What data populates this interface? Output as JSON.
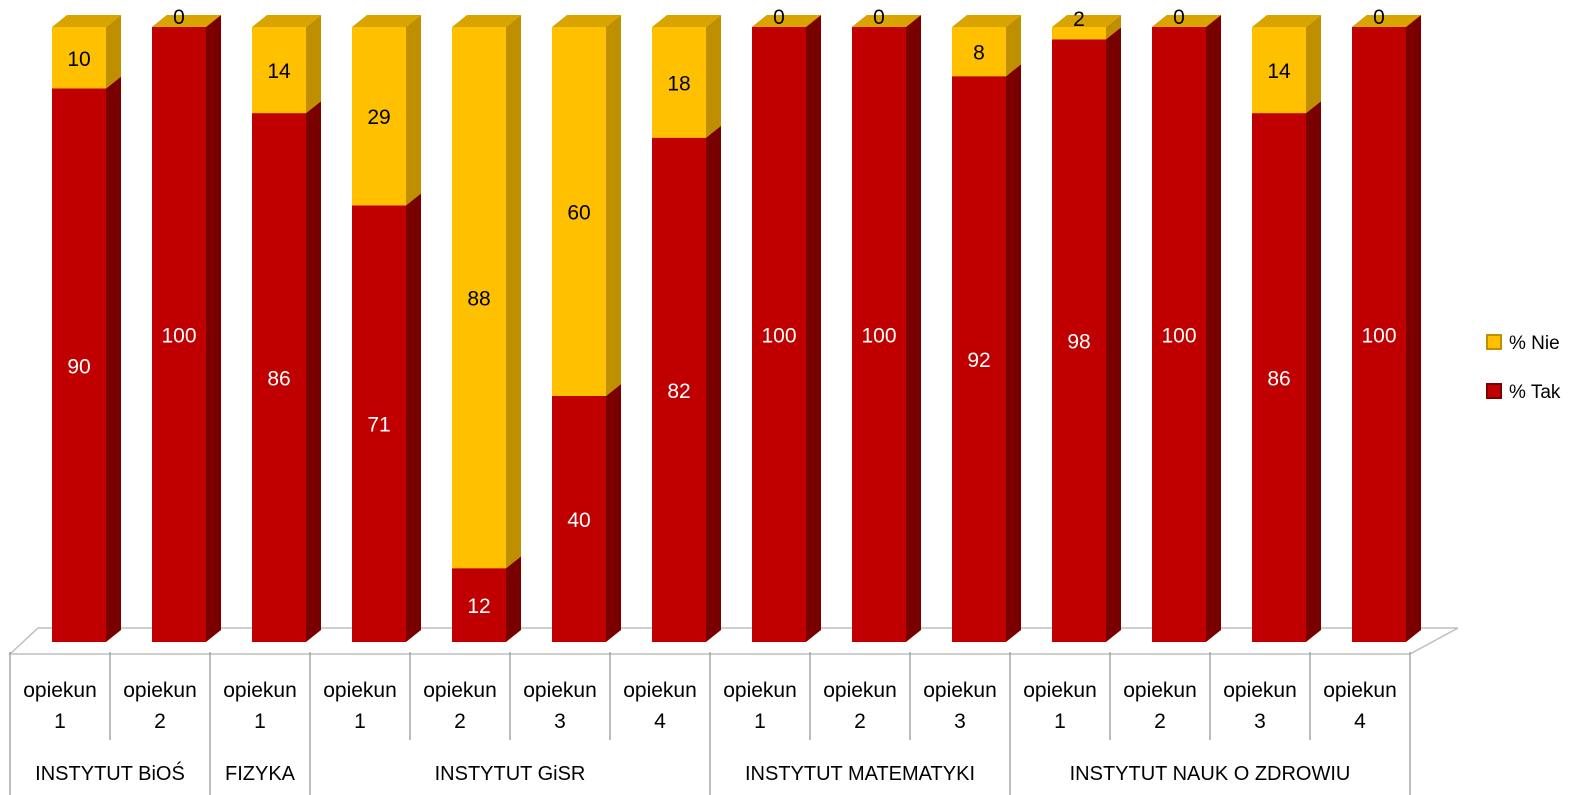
{
  "chart_data": {
    "type": "bar",
    "stacked": true,
    "three_d": true,
    "ylim": [
      0,
      100
    ],
    "grid": false,
    "legend_position": "right",
    "category_prefix": "opiekun",
    "categories": [
      "opiekun 1",
      "opiekun 2",
      "opiekun 1",
      "opiekun 1",
      "opiekun 2",
      "opiekun 3",
      "opiekun 4",
      "opiekun 1",
      "opiekun 2",
      "opiekun 3",
      "opiekun 1",
      "opiekun 2",
      "opiekun 3",
      "opiekun 4"
    ],
    "category_numbers": [
      "1",
      "2",
      "1",
      "1",
      "2",
      "3",
      "4",
      "1",
      "2",
      "3",
      "1",
      "2",
      "3",
      "4"
    ],
    "groups": [
      {
        "label": "INSTYTUT  BiOŚ",
        "count": 2
      },
      {
        "label": "FIZYKA",
        "count": 1
      },
      {
        "label": "INSTYTUT  GiSR",
        "count": 4
      },
      {
        "label": "INSTYTUT  MATEMATYKI",
        "count": 3
      },
      {
        "label": "INSTYTUT  NAUK O ZDROWIU",
        "count": 4
      }
    ],
    "series": [
      {
        "name": "% Tak",
        "color": "#c00000",
        "side_color": "#7a0000",
        "top_color": "#c00000",
        "values": [
          90,
          100,
          86,
          71,
          12,
          40,
          82,
          100,
          100,
          92,
          98,
          100,
          86,
          100
        ]
      },
      {
        "name": "% Nie",
        "color": "#ffc000",
        "side_color": "#bf8f00",
        "top_color": "#d9a400",
        "values": [
          10,
          0,
          14,
          29,
          88,
          60,
          18,
          0,
          0,
          8,
          2,
          0,
          14,
          0
        ]
      }
    ],
    "legend_order": [
      "% Nie",
      "% Tak"
    ]
  }
}
